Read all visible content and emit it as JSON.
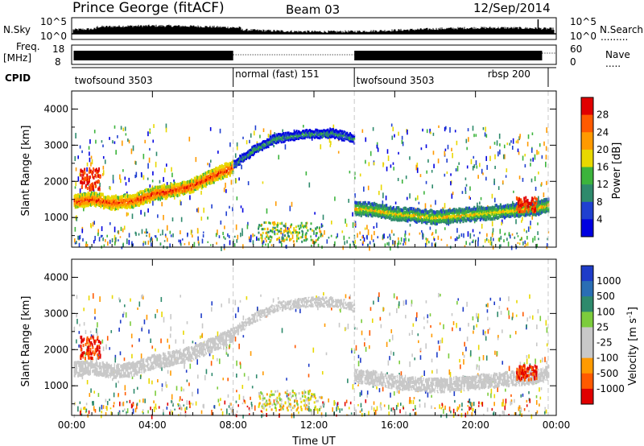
{
  "header": {
    "station": "Prince George (fitACF)",
    "beam": "Beam 03",
    "date": "12/Sep/2014"
  },
  "strip_labels": {
    "nsky": "N.Sky",
    "nsearch": "N.Search",
    "freq": "Freq.",
    "mhz": "[MHz]",
    "nave": "Nave",
    "cpid": "CPID",
    "left_top_ticks": [
      "10^5",
      "10^0"
    ],
    "right_top_ticks": [
      "10^5",
      "10^0"
    ],
    "freq_ticks": [
      "18",
      "8"
    ],
    "nave_ticks": [
      "60",
      "0"
    ]
  },
  "cpid_segments": [
    {
      "start": 0,
      "end": 8,
      "label": "twofsound 3503"
    },
    {
      "start": 8,
      "end": 14,
      "label": "normal (fast) 151"
    },
    {
      "start": 14,
      "end": 23.6,
      "label": "twofsound 3503"
    },
    {
      "start": 19.5,
      "end": 23.6,
      "label": "rbsp 200"
    }
  ],
  "chart_data": [
    {
      "type": "heatmap",
      "title": "",
      "xlabel": "Time UT",
      "ylabel": "Slant Range [km]",
      "xlim": [
        0,
        24
      ],
      "ylim": [
        180,
        4500
      ],
      "x_ticks": [
        "00:00",
        "04:00",
        "08:00",
        "12:00",
        "16:00",
        "20:00",
        "00:00"
      ],
      "y_ticks": [
        "1000",
        "2000",
        "3000",
        "4000"
      ],
      "colorbar": {
        "label": "Power [dB]",
        "ticks": [
          "28",
          "24",
          "20",
          "16",
          "12",
          "8",
          "4"
        ],
        "colors": [
          "#e00000",
          "#ff5a00",
          "#ff9a00",
          "#e8d800",
          "#3cb43c",
          "#2e8a6c",
          "#2040d0",
          "#0000e0"
        ]
      },
      "bands": [
        {
          "x": [
            0.1,
            1,
            2,
            3,
            4,
            5,
            6,
            7,
            8
          ],
          "y": [
            1500,
            1550,
            1450,
            1500,
            1700,
            1800,
            1950,
            2200,
            2450
          ],
          "value": 26
        },
        {
          "x": [
            8,
            9,
            10,
            11,
            12,
            13,
            14
          ],
          "y": [
            2500,
            2900,
            3200,
            3300,
            3350,
            3350,
            3200
          ],
          "value": 12
        },
        {
          "x": [
            14,
            15,
            16,
            17,
            18,
            19,
            20,
            21,
            22,
            23,
            23.6
          ],
          "y": [
            1300,
            1250,
            1150,
            1100,
            1050,
            1100,
            1150,
            1200,
            1250,
            1300,
            1400
          ],
          "value": 18
        }
      ]
    },
    {
      "type": "heatmap",
      "title": "",
      "xlabel": "Time UT",
      "ylabel": "Slant Range [km]",
      "xlim": [
        0,
        24
      ],
      "ylim": [
        180,
        4500
      ],
      "x_ticks": [
        "00:00",
        "04:00",
        "08:00",
        "12:00",
        "16:00",
        "20:00",
        "00:00"
      ],
      "y_ticks": [
        "1000",
        "2000",
        "3000",
        "4000"
      ],
      "colorbar": {
        "label": "Velocity [m s^-1]",
        "ticks": [
          "1000",
          "500",
          "100",
          "25",
          "-25",
          "-100",
          "-500",
          "-1000"
        ],
        "colors": [
          "#1e3cc8",
          "#2a6eb4",
          "#2e8a6c",
          "#7ccc3c",
          "#c8c8c8",
          "#c8c8c8",
          "#ff9a00",
          "#ff5a00",
          "#e00000"
        ]
      },
      "bands": [
        {
          "x": [
            0.1,
            1,
            2,
            3,
            4,
            5,
            6,
            7,
            8
          ],
          "y": [
            1500,
            1550,
            1450,
            1500,
            1700,
            1800,
            1950,
            2200,
            2450
          ],
          "value": 0
        },
        {
          "x": [
            8,
            9,
            10,
            11,
            12,
            13,
            14
          ],
          "y": [
            2500,
            2900,
            3200,
            3300,
            3350,
            3350,
            3200
          ],
          "value": 0
        },
        {
          "x": [
            14,
            15,
            16,
            17,
            18,
            19,
            20,
            21,
            22,
            23,
            23.6
          ],
          "y": [
            1300,
            1250,
            1150,
            1100,
            1050,
            1100,
            1150,
            1200,
            1250,
            1300,
            1400
          ],
          "value": 0
        }
      ]
    }
  ]
}
